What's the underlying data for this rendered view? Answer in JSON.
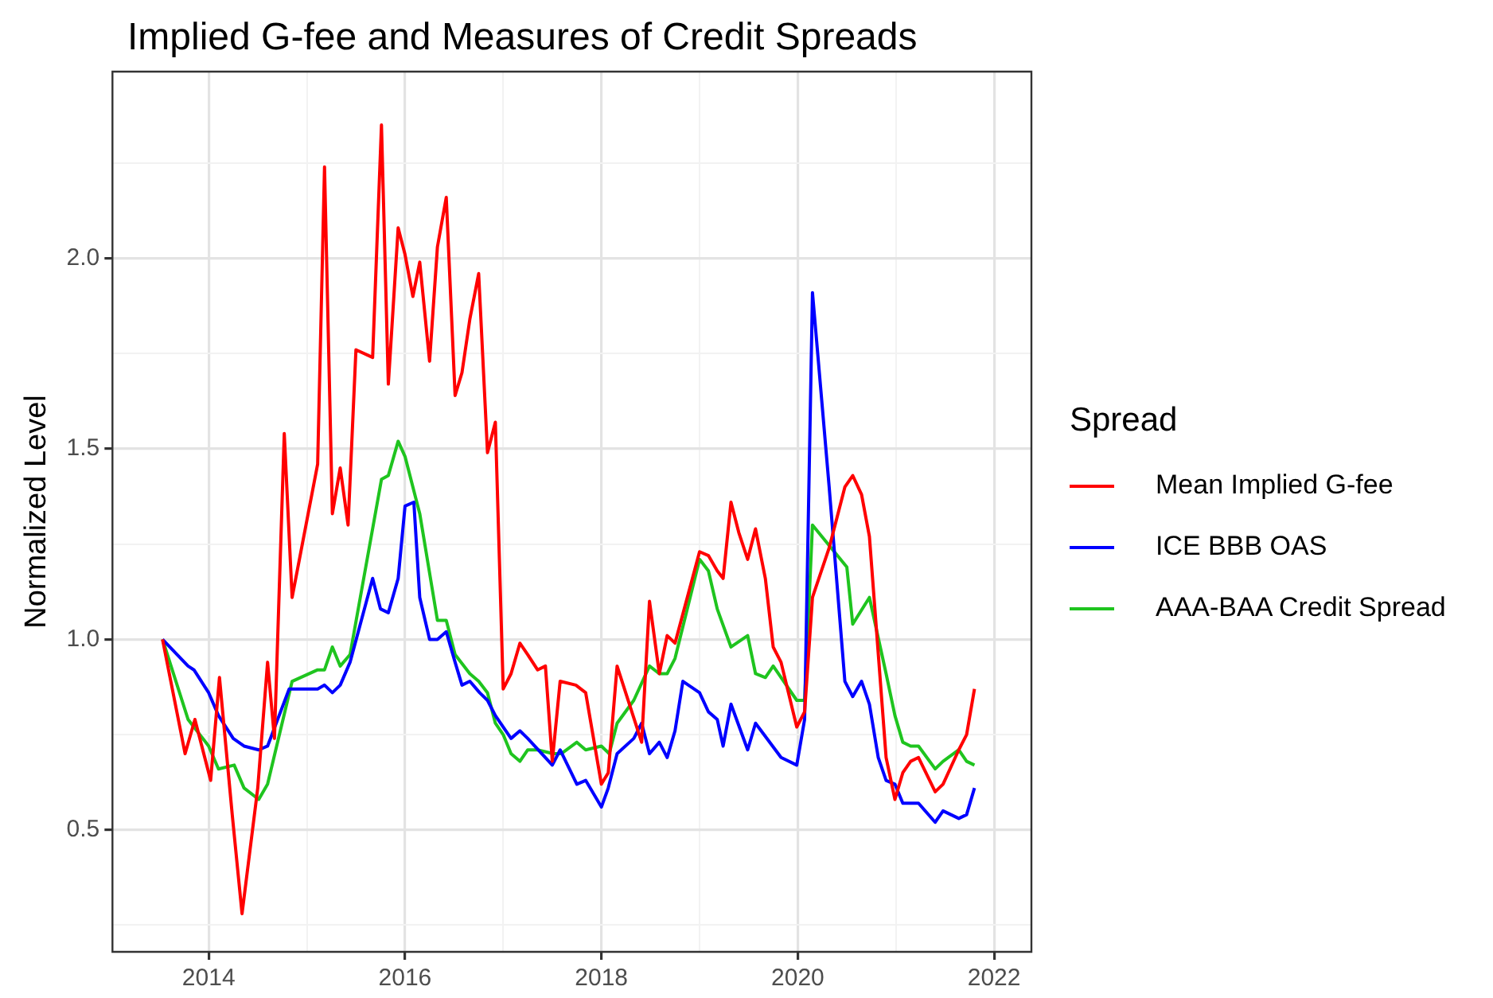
{
  "chart_data": {
    "type": "line",
    "title": "Implied G-fee and Measures of Credit Spreads",
    "ylabel": "Normalized Level",
    "legend_title": "Spread",
    "legend": "right",
    "grid": true,
    "marker": "none",
    "line_style": "solid",
    "xlim": [
      2013.02,
      2022.38
    ],
    "xticks": [
      2014,
      {
        "value": 2015,
        "label": null
      },
      2016,
      {
        "value": 2017,
        "label": null
      },
      2018,
      {
        "value": 2019,
        "label": null
      },
      2020,
      {
        "value": 2021,
        "label": null
      },
      2022
    ],
    "ylim": [
      0.18,
      2.49
    ],
    "yticks": [
      {
        "value": 0.25,
        "label": null
      },
      0.5,
      {
        "value": 0.75,
        "label": null
      },
      {
        "value": 1,
        "label": "1.0"
      },
      {
        "value": 1.25,
        "label": null
      },
      1.5,
      {
        "value": 1.75,
        "label": null
      },
      {
        "value": 2,
        "label": "2.0"
      },
      {
        "value": 2.25,
        "label": null
      }
    ],
    "series": [
      {
        "name": "Mean Implied G-fee",
        "color": "#ff0000",
        "x": [
          2013.53,
          2013.76,
          2013.86,
          2014.02,
          2014.11,
          2014.24,
          2014.34,
          2014.5,
          2014.6,
          2014.67,
          2014.77,
          2014.85,
          2015.11,
          2015.18,
          2015.26,
          2015.34,
          2015.42,
          2015.5,
          2015.67,
          2015.76,
          2015.83,
          2015.93,
          2016.0,
          2016.08,
          2016.15,
          2016.25,
          2016.33,
          2016.42,
          2016.51,
          2016.58,
          2016.66,
          2016.75,
          2016.84,
          2016.92,
          2017.0,
          2017.08,
          2017.17,
          2017.25,
          2017.35,
          2017.43,
          2017.5,
          2017.58,
          2017.74,
          2017.84,
          2018.0,
          2018.07,
          2018.16,
          2018.41,
          2018.49,
          2018.59,
          2018.67,
          2018.75,
          2019.0,
          2019.09,
          2019.18,
          2019.24,
          2019.32,
          2019.4,
          2019.49,
          2019.57,
          2019.67,
          2019.75,
          2019.83,
          2019.99,
          2020.07,
          2020.15,
          2020.32,
          2020.48,
          2020.56,
          2020.65,
          2020.73,
          2020.9,
          2020.99,
          2021.07,
          2021.15,
          2021.23,
          2021.4,
          2021.48,
          2021.64,
          2021.72,
          2021.8
        ],
        "values": [
          1.0,
          0.7,
          0.79,
          0.63,
          0.9,
          0.54,
          0.28,
          0.61,
          0.94,
          0.74,
          1.54,
          1.11,
          1.46,
          2.24,
          1.33,
          1.45,
          1.3,
          1.76,
          1.74,
          2.35,
          1.67,
          2.08,
          2.01,
          1.9,
          1.99,
          1.73,
          2.03,
          2.16,
          1.64,
          1.7,
          1.84,
          1.96,
          1.49,
          1.57,
          0.87,
          0.91,
          0.99,
          0.96,
          0.92,
          0.93,
          0.68,
          0.89,
          0.88,
          0.86,
          0.62,
          0.65,
          0.93,
          0.73,
          1.1,
          0.91,
          1.01,
          0.99,
          1.23,
          1.22,
          1.18,
          1.16,
          1.36,
          1.28,
          1.21,
          1.29,
          1.16,
          0.98,
          0.94,
          0.77,
          0.81,
          1.11,
          1.24,
          1.4,
          1.43,
          1.38,
          1.27,
          0.69,
          0.58,
          0.65,
          0.68,
          0.69,
          0.6,
          0.62,
          0.71,
          0.75,
          0.87
        ]
      },
      {
        "name": "ICE BBB OAS",
        "color": "#0000ff",
        "x": [
          2013.53,
          2013.79,
          2013.85,
          2014.0,
          2014.1,
          2014.25,
          2014.36,
          2014.51,
          2014.6,
          2014.82,
          2015.11,
          2015.18,
          2015.26,
          2015.34,
          2015.44,
          2015.67,
          2015.75,
          2015.83,
          2015.93,
          2016.0,
          2016.09,
          2016.15,
          2016.25,
          2016.33,
          2016.42,
          2016.51,
          2016.58,
          2016.66,
          2016.76,
          2016.84,
          2016.92,
          2017.08,
          2017.17,
          2017.25,
          2017.5,
          2017.58,
          2017.75,
          2017.84,
          2018.0,
          2018.07,
          2018.16,
          2018.33,
          2018.41,
          2018.49,
          2018.59,
          2018.67,
          2018.75,
          2018.83,
          2019.0,
          2019.09,
          2019.18,
          2019.24,
          2019.32,
          2019.49,
          2019.57,
          2019.83,
          2019.99,
          2020.07,
          2020.15,
          2020.32,
          2020.48,
          2020.56,
          2020.65,
          2020.73,
          2020.82,
          2020.9,
          2020.99,
          2021.07,
          2021.15,
          2021.23,
          2021.4,
          2021.48,
          2021.64,
          2021.72,
          2021.8
        ],
        "values": [
          1.0,
          0.93,
          0.92,
          0.86,
          0.8,
          0.74,
          0.72,
          0.71,
          0.72,
          0.87,
          0.87,
          0.88,
          0.86,
          0.88,
          0.94,
          1.16,
          1.08,
          1.07,
          1.16,
          1.35,
          1.36,
          1.11,
          1.0,
          1.0,
          1.02,
          0.94,
          0.88,
          0.89,
          0.86,
          0.84,
          0.8,
          0.74,
          0.76,
          0.74,
          0.67,
          0.71,
          0.62,
          0.63,
          0.56,
          0.61,
          0.7,
          0.74,
          0.78,
          0.7,
          0.73,
          0.69,
          0.76,
          0.89,
          0.86,
          0.81,
          0.79,
          0.72,
          0.83,
          0.71,
          0.78,
          0.69,
          0.67,
          0.79,
          1.91,
          1.4,
          0.89,
          0.85,
          0.89,
          0.83,
          0.69,
          0.63,
          0.62,
          0.57,
          0.57,
          0.57,
          0.52,
          0.55,
          0.53,
          0.54,
          0.61
        ]
      },
      {
        "name": "AAA-BAA Credit Spread",
        "color": "#1fc41f",
        "x": [
          2013.53,
          2013.79,
          2013.85,
          2014.0,
          2014.1,
          2014.26,
          2014.36,
          2014.51,
          2014.6,
          2014.85,
          2015.11,
          2015.18,
          2015.26,
          2015.34,
          2015.44,
          2015.76,
          2015.83,
          2015.93,
          2016.0,
          2016.15,
          2016.33,
          2016.42,
          2016.51,
          2016.66,
          2016.75,
          2016.84,
          2016.92,
          2017.0,
          2017.08,
          2017.17,
          2017.25,
          2017.35,
          2017.51,
          2017.59,
          2017.75,
          2017.84,
          2018.0,
          2018.08,
          2018.16,
          2018.33,
          2018.49,
          2018.59,
          2018.67,
          2018.75,
          2019.0,
          2019.09,
          2019.18,
          2019.32,
          2019.49,
          2019.57,
          2019.67,
          2019.75,
          2019.99,
          2020.07,
          2020.15,
          2020.5,
          2020.56,
          2020.73,
          2020.9,
          2020.99,
          2021.07,
          2021.15,
          2021.23,
          2021.4,
          2021.48,
          2021.64,
          2021.72,
          2021.8
        ],
        "values": [
          1.0,
          0.79,
          0.77,
          0.72,
          0.66,
          0.67,
          0.61,
          0.58,
          0.62,
          0.89,
          0.92,
          0.92,
          0.98,
          0.93,
          0.96,
          1.42,
          1.43,
          1.52,
          1.48,
          1.33,
          1.05,
          1.05,
          0.96,
          0.91,
          0.89,
          0.86,
          0.78,
          0.75,
          0.7,
          0.68,
          0.71,
          0.71,
          0.7,
          0.7,
          0.73,
          0.71,
          0.72,
          0.7,
          0.78,
          0.84,
          0.93,
          0.91,
          0.91,
          0.95,
          1.21,
          1.18,
          1.08,
          0.98,
          1.01,
          0.91,
          0.9,
          0.93,
          0.84,
          0.84,
          1.3,
          1.19,
          1.04,
          1.11,
          0.91,
          0.8,
          0.73,
          0.72,
          0.72,
          0.66,
          0.68,
          0.71,
          0.68,
          0.67
        ]
      }
    ]
  }
}
